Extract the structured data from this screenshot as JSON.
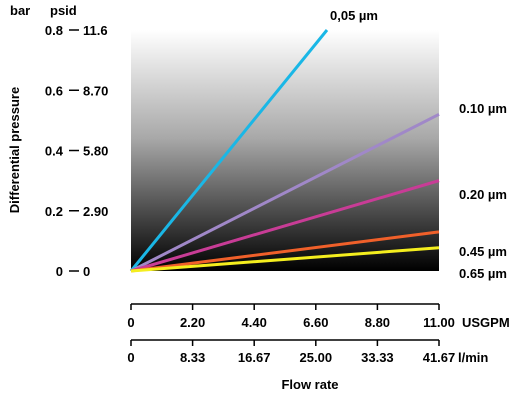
{
  "chart_data": {
    "type": "line",
    "title": "",
    "ylabel": "Differential pressure",
    "xlabel": "Flow rate",
    "ylim": [
      0,
      0.8
    ],
    "xlim": [
      0,
      11.0
    ],
    "y_units_left": "bar",
    "y_units_right": "psid",
    "y_ticks_bar": [
      "0",
      "0.2",
      "0.4",
      "0.6",
      "0.8"
    ],
    "y_ticks_psid": [
      "0",
      "2.90",
      "5.80",
      "8.70",
      "11.6"
    ],
    "x_ticks_usgpm": [
      "0",
      "2.20",
      "4.40",
      "6.60",
      "8.80",
      "11.00"
    ],
    "x_unit_usgpm": "USGPM",
    "x_ticks_lmin": [
      "0",
      "8.33",
      "16.67",
      "25.00",
      "33.33",
      "41.67"
    ],
    "x_unit_lmin": "l/min",
    "background": "vertical gradient, white at top to black at bottom",
    "grid": false,
    "series": [
      {
        "name": "0,05 µm",
        "color": "#1ab7e6",
        "x": [
          0,
          7.0
        ],
        "y": [
          0,
          0.8
        ]
      },
      {
        "name": "0.10 µm",
        "color": "#a088c8",
        "x": [
          0,
          11.0
        ],
        "y": [
          0,
          0.52
        ]
      },
      {
        "name": "0.20 µm",
        "color": "#c83c96",
        "x": [
          0,
          11.0
        ],
        "y": [
          0,
          0.3
        ]
      },
      {
        "name": "0.45 µm",
        "color": "#f0602a",
        "x": [
          0,
          11.0
        ],
        "y": [
          0,
          0.13
        ]
      },
      {
        "name": "0.65 µm",
        "color": "#f4ee1e",
        "x": [
          0,
          11.0
        ],
        "y": [
          0,
          0.077
        ]
      }
    ]
  }
}
